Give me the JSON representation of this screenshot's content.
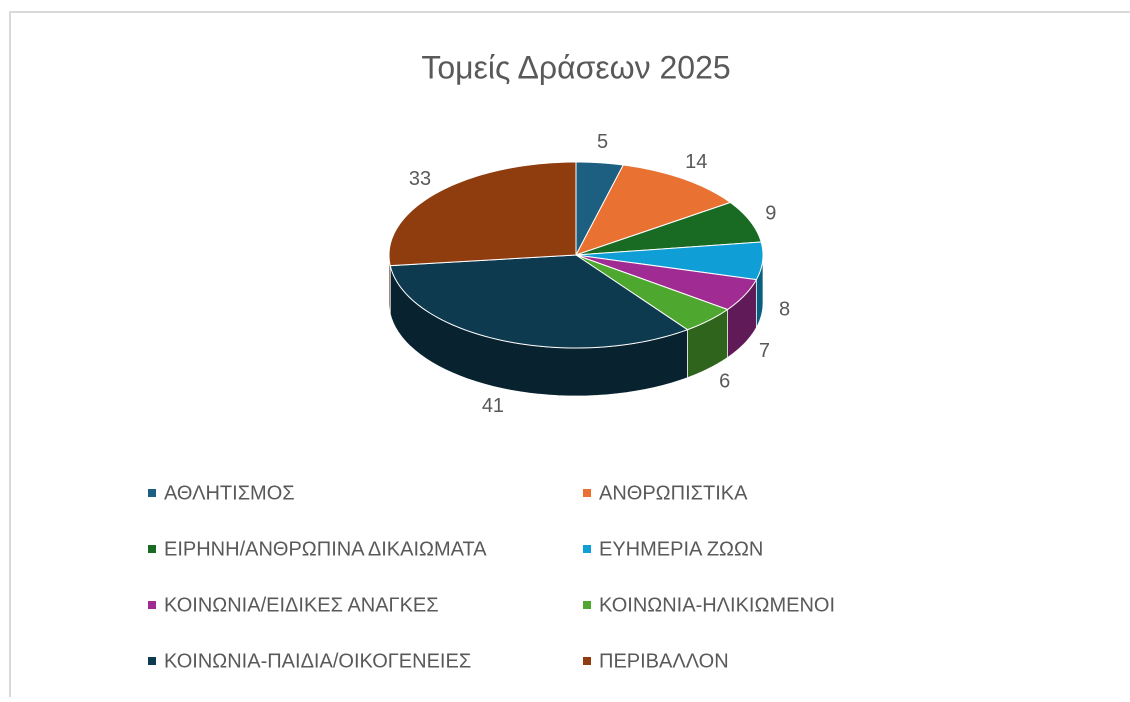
{
  "chart_data": {
    "type": "pie3d",
    "title": "Τομείς Δράσεων 2025",
    "categories": [
      "ΑΘΛΗΤΙΣΜΟΣ",
      "ΑΝΘΡΩΠΙΣΤΙΚΑ",
      "ΕΙΡΗΝΗ/ΑΝΘΡΩΠΙΝΑ ΔΙΚΑΙΩΜΑΤΑ",
      "ΕΥΗΜΕΡΙΑ ΖΩΩΝ",
      "ΚΟΙΝΩΝΙΑ/ΕΙΔΙΚΕΣ ΑΝΑΓΚΕΣ",
      "ΚΟΙΝΩΝΙΑ-ΗΛΙΚΙΩΜΕΝΟΙ",
      "ΚΟΙΝΩΝΙΑ-ΠΑΙΔΙΑ/ΟΙΚΟΓΕΝΕΙΕΣ",
      "ΠΕΡΙΒΑΛΛΟΝ"
    ],
    "values": [
      5,
      14,
      9,
      8,
      7,
      6,
      41,
      33
    ],
    "colors": [
      "#1c5f80",
      "#e97132",
      "#196b24",
      "#0f9ed5",
      "#a02b93",
      "#4ea72e",
      "#0e3a4f",
      "#8f3c0e"
    ],
    "legend": "bottom"
  }
}
